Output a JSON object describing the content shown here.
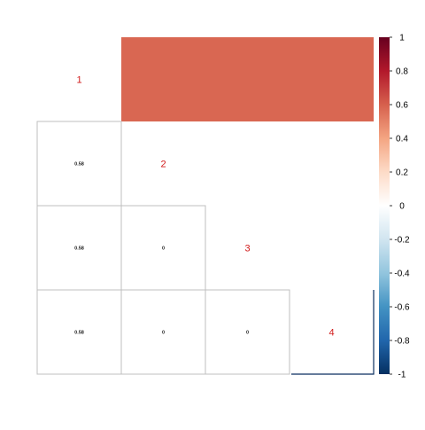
{
  "chart_data": {
    "type": "heatmap",
    "variables": [
      "1",
      "2",
      "3",
      "4"
    ],
    "matrix": [
      [
        1.0,
        0.58,
        0.58,
        0.58
      ],
      [
        0.58,
        1.0,
        0.0,
        0.0
      ],
      [
        0.58,
        0.0,
        1.0,
        0.0
      ],
      [
        0.58,
        0.0,
        0.0,
        1.0
      ]
    ],
    "lower_panel": "number",
    "upper_panel": "shade",
    "diagonal": "labels",
    "value_labels": {
      "r2c1": "0.58",
      "r3c1": "0.58",
      "r4c1": "0.58",
      "r3c2": "0",
      "r4c2": "0",
      "r4c3": "0"
    },
    "colorbar": {
      "range": [
        -1,
        1
      ],
      "tick_labels": [
        "1",
        "0.8",
        "0.6",
        "0.4",
        "0.2",
        "0",
        "-0.2",
        "-0.4",
        "-0.6",
        "-0.8",
        "-1"
      ],
      "tick_values": [
        1,
        0.8,
        0.6,
        0.4,
        0.2,
        0,
        -0.2,
        -0.4,
        -0.6,
        -0.8,
        -1
      ],
      "colors": [
        "#67001F",
        "#B2182B",
        "#D6604D",
        "#F4A582",
        "#FDDBC7",
        "#FFFFFF",
        "#D1E5F0",
        "#92C5DE",
        "#4393C3",
        "#2166AC",
        "#053061"
      ]
    },
    "colors": {
      "diagonal_label": "#d11a1a",
      "grid_line": "#bfbfbf"
    }
  }
}
